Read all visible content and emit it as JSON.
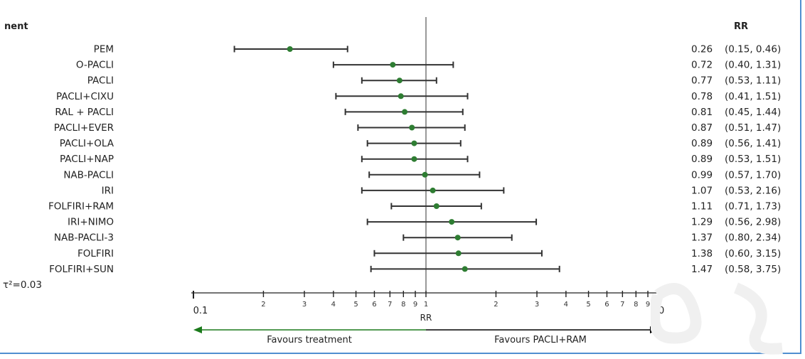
{
  "chart_data": {
    "type": "forest",
    "header_left": "nent",
    "header_right": "RR",
    "rows": [
      {
        "label": "PEM",
        "rr": 0.26,
        "lo": 0.15,
        "hi": 0.46,
        "rr_text": "0.26",
        "ci_text": "(0.15, 0.46)"
      },
      {
        "label": "O-PACLI",
        "rr": 0.72,
        "lo": 0.4,
        "hi": 1.31,
        "rr_text": "0.72",
        "ci_text": "(0.40, 1.31)"
      },
      {
        "label": "PACLI",
        "rr": 0.77,
        "lo": 0.53,
        "hi": 1.11,
        "rr_text": "0.77",
        "ci_text": "(0.53, 1.11)"
      },
      {
        "label": "PACLI+CIXU",
        "rr": 0.78,
        "lo": 0.41,
        "hi": 1.51,
        "rr_text": "0.78",
        "ci_text": "(0.41, 1.51)"
      },
      {
        "label": "RAL + PACLI",
        "rr": 0.81,
        "lo": 0.45,
        "hi": 1.44,
        "rr_text": "0.81",
        "ci_text": "(0.45, 1.44)"
      },
      {
        "label": "PACLI+EVER",
        "rr": 0.87,
        "lo": 0.51,
        "hi": 1.47,
        "rr_text": "0.87",
        "ci_text": "(0.51, 1.47)"
      },
      {
        "label": "PACLI+OLA",
        "rr": 0.89,
        "lo": 0.56,
        "hi": 1.41,
        "rr_text": "0.89",
        "ci_text": "(0.56, 1.41)"
      },
      {
        "label": "PACLI+NAP",
        "rr": 0.89,
        "lo": 0.53,
        "hi": 1.51,
        "rr_text": "0.89",
        "ci_text": "(0.53, 1.51)"
      },
      {
        "label": "NAB-PACLI",
        "rr": 0.99,
        "lo": 0.57,
        "hi": 1.7,
        "rr_text": "0.99",
        "ci_text": "(0.57, 1.70)"
      },
      {
        "label": "IRI",
        "rr": 1.07,
        "lo": 0.53,
        "hi": 2.16,
        "rr_text": "1.07",
        "ci_text": "(0.53, 2.16)"
      },
      {
        "label": "FOLFIRI+RAM",
        "rr": 1.11,
        "lo": 0.71,
        "hi": 1.73,
        "rr_text": "1.11",
        "ci_text": "(0.71, 1.73)"
      },
      {
        "label": "IRI+NIMO",
        "rr": 1.29,
        "lo": 0.56,
        "hi": 2.98,
        "rr_text": "1.29",
        "ci_text": "(0.56, 2.98)"
      },
      {
        "label": "NAB-PACLI-3",
        "rr": 1.37,
        "lo": 0.8,
        "hi": 2.34,
        "rr_text": "1.37",
        "ci_text": "(0.80, 2.34)"
      },
      {
        "label": "FOLFIRI",
        "rr": 1.38,
        "lo": 0.6,
        "hi": 3.15,
        "rr_text": "1.38",
        "ci_text": "(0.60, 3.15)"
      },
      {
        "label": "FOLFIRI+SUN",
        "rr": 1.47,
        "lo": 0.58,
        "hi": 3.75,
        "rr_text": "1.47",
        "ci_text": "(0.58, 3.75)"
      }
    ],
    "tau_text": "τ²=0.03",
    "x_axis": {
      "scale": "log",
      "range": [
        0.1,
        10
      ],
      "label": "RR",
      "end_labels": [
        {
          "value": 0.1,
          "text": "0.1"
        },
        {
          "value": 10,
          "text": "10"
        }
      ],
      "minor_ticks": [
        {
          "value": 0.2,
          "text": "2"
        },
        {
          "value": 0.3,
          "text": "3"
        },
        {
          "value": 0.4,
          "text": "4"
        },
        {
          "value": 0.5,
          "text": "5"
        },
        {
          "value": 0.6,
          "text": "6"
        },
        {
          "value": 0.7,
          "text": "7"
        },
        {
          "value": 0.8,
          "text": "8"
        },
        {
          "value": 0.9,
          "text": "9"
        },
        {
          "value": 1,
          "text": "1"
        },
        {
          "value": 2,
          "text": "2"
        },
        {
          "value": 3,
          "text": "3"
        },
        {
          "value": 4,
          "text": "4"
        },
        {
          "value": 5,
          "text": "5"
        },
        {
          "value": 6,
          "text": "6"
        },
        {
          "value": 7,
          "text": "7"
        },
        {
          "value": 8,
          "text": "8"
        },
        {
          "value": 9,
          "text": "9"
        }
      ]
    },
    "reference_line": 1,
    "favours_left": "Favours treatment",
    "favours_right": "Favours PACLI+RAM",
    "colors": {
      "point": "#2e7d32",
      "ci_line": "#333333",
      "left_arrow": "#1b7a1b",
      "right_arrow": "#000000",
      "frame": "#4f8fd0"
    }
  }
}
